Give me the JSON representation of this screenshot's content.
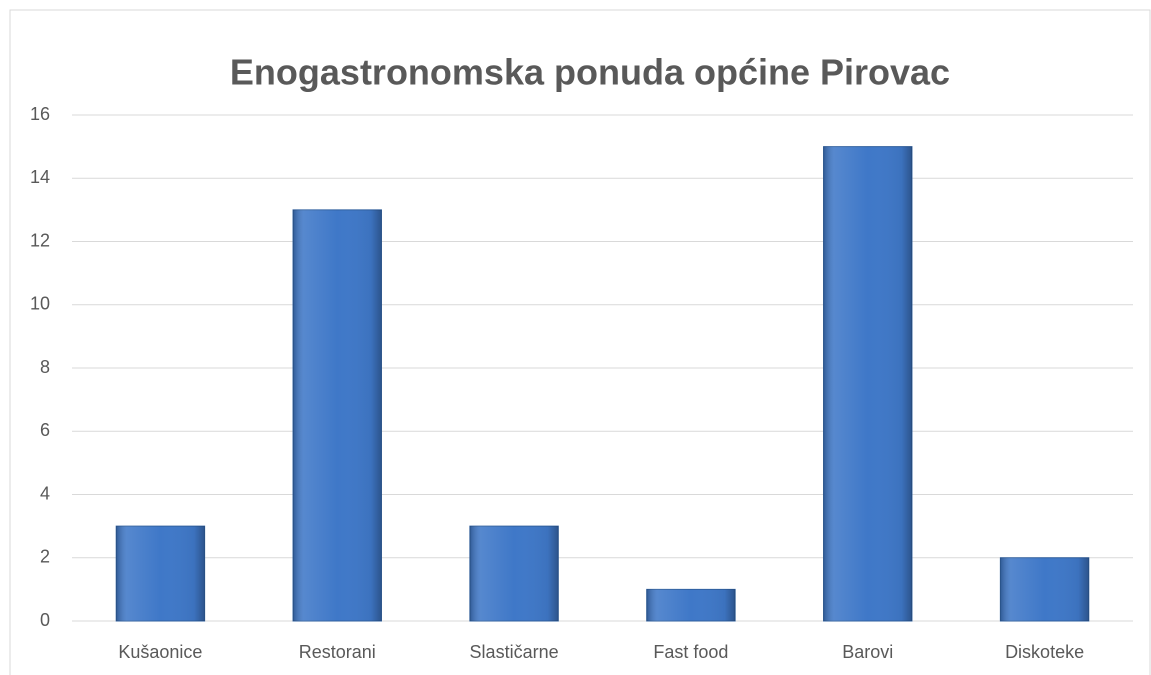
{
  "chart_data": {
    "type": "bar",
    "title": "Enogastronomska ponuda općine Pirovac",
    "categories": [
      "Kušaonice",
      "Restorani",
      "Slastičarne",
      "Fast food",
      "Barovi",
      "Diskoteke"
    ],
    "values": [
      3,
      13,
      3,
      1,
      15,
      2
    ],
    "color": "#3f78c8",
    "ylim": [
      0,
      16
    ],
    "yticks": [
      0,
      2,
      4,
      6,
      8,
      10,
      12,
      14,
      16
    ],
    "grid": true
  }
}
